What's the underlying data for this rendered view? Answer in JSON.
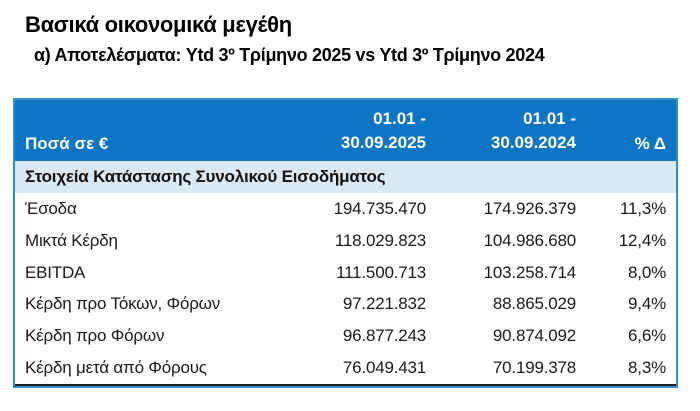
{
  "page": {
    "title": "Βασικά οικονομικά μεγέθη",
    "subtitle": "α) Αποτελέσματα: Ytd 3º Τρίμηνο 2025 vs Ytd 3º Τρίμηνο 2024"
  },
  "colors": {
    "header_bg": "#0E74C4",
    "header_text": "#FFFFFF",
    "section_bg": "#DBE9F5",
    "table_border": "#2E8FCC",
    "body_text": "#1A1A1A"
  },
  "table": {
    "header": {
      "amounts_label": "Ποσά σε €",
      "period_2025_line1": "01.01 -",
      "period_2025_line2": "30.09.2025",
      "period_2024_line1": "01.01 -",
      "period_2024_line2": "30.09.2024",
      "delta_label": "% Δ"
    },
    "section_title": "Στοιχεία Κατάστασης Συνολικού Εισοδήματος",
    "rows": [
      {
        "label": "Έσοδα",
        "ytd_2025": "194.735.470",
        "ytd_2024": "174.926.379",
        "delta": "11,3%"
      },
      {
        "label": "Μικτά Κέρδη",
        "ytd_2025": "118.029.823",
        "ytd_2024": "104.986.680",
        "delta": "12,4%"
      },
      {
        "label": "EBITDA",
        "ytd_2025": "111.500.713",
        "ytd_2024": "103.258.714",
        "delta": "8,0%"
      },
      {
        "label": "Κέρδη προ Τόκων, Φόρων",
        "ytd_2025": "97.221.832",
        "ytd_2024": "88.865.029",
        "delta": "9,4%"
      },
      {
        "label": "Κέρδη προ Φόρων",
        "ytd_2025": "96.877.243",
        "ytd_2024": "90.874.092",
        "delta": "6,6%"
      },
      {
        "label": "Κέρδη μετά από Φόρους",
        "ytd_2025": "76.049.431",
        "ytd_2024": "70.199.378",
        "delta": "8,3%"
      }
    ]
  }
}
